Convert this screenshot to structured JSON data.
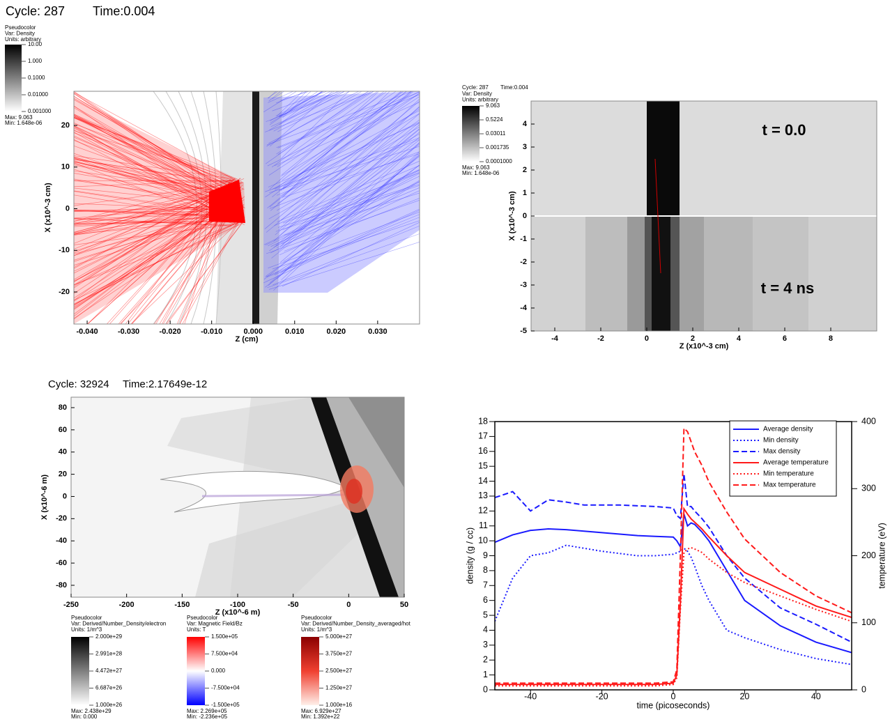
{
  "chart_data": [
    {
      "type": "image",
      "cycle": "Cycle: 287",
      "time": "Time:0.004",
      "xlabel": "Z (cm)",
      "ylabel": "X (x10^-3 cm)",
      "xlim": [
        -0.0432,
        0.0401
      ],
      "ylim": [
        -27.7,
        28.2
      ],
      "xticks": [
        {
          "value": -0.04,
          "label": "-0.040"
        },
        {
          "value": -0.03,
          "label": "-0.030"
        },
        {
          "value": -0.02,
          "label": "-0.020"
        },
        {
          "value": -0.01,
          "label": "-0.010"
        },
        {
          "value": 0,
          "label": "0.000"
        },
        {
          "value": 0.01,
          "label": "0.010"
        },
        {
          "value": 0.02,
          "label": "0.020"
        },
        {
          "value": 0.03,
          "label": "0.030"
        }
      ],
      "yticks": [
        20,
        10,
        0,
        -10,
        -20
      ],
      "legends": [
        {
          "title": "Pseudocolor",
          "var": "Var: Density",
          "units": "Units: arbitrary",
          "labels": [
            "10.00",
            "1.000",
            "0.1000",
            "0.01000",
            "0.001000"
          ],
          "max": "Max:  9.063",
          "min": "Min:  1.648e-06"
        }
      ]
    },
    {
      "type": "image",
      "cycle": "Cycle: 287",
      "time": "Time:0.004",
      "xlabel": "Z (x10^-3 cm)",
      "ylabel": "X (x10^-3 cm)",
      "xlim": [
        -5.03,
        10.0
      ],
      "ylim": [
        -5,
        5
      ],
      "xticks": [
        -4,
        -2,
        0,
        2,
        4,
        6,
        8
      ],
      "yticks": [
        4,
        3,
        2,
        1,
        0,
        -1,
        -2,
        -3,
        -4,
        -5
      ],
      "annotations": [
        "t = 0.0",
        "t = 4 ns"
      ],
      "legends": [
        {
          "var": "Var: Density",
          "units": "Units: arbitrary",
          "labels": [
            "9.063",
            "0.5224",
            "0.03011",
            "0.001735",
            "0.0001000"
          ],
          "max": "Max:  9.063",
          "min": "Min:  1.648e-06"
        }
      ]
    },
    {
      "type": "image",
      "cycle": "Cycle: 32924",
      "time": "Time:2.17649e-12",
      "xlabel": "Z (x10^-6 m)",
      "ylabel": "X (x10^-6 m)",
      "xlim": [
        -250,
        50
      ],
      "ylim": [
        -90.7,
        89.4
      ],
      "xticks": [
        -250,
        -200,
        -150,
        -100,
        -50,
        0,
        50
      ],
      "yticks": [
        80,
        60,
        40,
        20,
        0,
        -20,
        -40,
        -60,
        -80
      ],
      "legends": [
        {
          "title": "Pseudocolor",
          "var": "Var: Derived/Number_Density/electron",
          "units": "Units: 1/m^3",
          "labels": [
            "2.000e+29",
            "2.991e+28",
            "4.472e+27",
            "6.687e+26",
            "1.000e+26"
          ],
          "max": "Max:  2.438e+29",
          "min": "Min:  0.000"
        },
        {
          "title": "Pseudocolor",
          "var": "Var: Magnetic Field/Bz",
          "units": "Units: T",
          "labels": [
            "1.500e+05",
            "7.500e+04",
            "0.000",
            "-7.500e+04",
            "-1.500e+05"
          ],
          "max": "Max:  2.269e+05",
          "min": "Min:  -2.236e+05"
        },
        {
          "title": "Pseudocolor",
          "var": "Var: Derived/Number_Density_averaged/hot",
          "units": "Units: 1/m^3",
          "labels": [
            "5.000e+27",
            "3.750e+27",
            "2.500e+27",
            "1.250e+27",
            "1.000e+16"
          ],
          "max": "Max:  6.929e+27",
          "min": "Min:  1.392e+22"
        }
      ]
    },
    {
      "type": "line",
      "xlabel": "time (picoseconds)",
      "ylabel": "density (g / cc)",
      "y2label": "temperature (eV)",
      "xlim": [
        -50,
        50
      ],
      "ylim": [
        0,
        18
      ],
      "y2lim": [
        0,
        400
      ],
      "xticks": [
        -40,
        -20,
        0,
        20,
        40
      ],
      "yticks": [
        0,
        1,
        2,
        3,
        4,
        5,
        6,
        7,
        8,
        9,
        10,
        11,
        12,
        13,
        14,
        15,
        16,
        17,
        18
      ],
      "y2ticks": [
        0,
        100,
        200,
        300,
        400
      ],
      "legend": "upper right",
      "x": [
        -50,
        -45,
        -40,
        -35,
        -30,
        -25,
        -20,
        -15,
        -10,
        -5,
        0,
        1,
        2,
        3,
        4,
        5,
        6,
        8,
        10,
        15,
        20,
        30,
        40,
        50
      ],
      "series": [
        {
          "name": "Average density",
          "color": "#1a1aff",
          "style": "solid",
          "values": [
            9.9,
            10.4,
            10.7,
            10.8,
            10.75,
            10.65,
            10.55,
            10.45,
            10.35,
            10.3,
            10.25,
            10.0,
            9.6,
            11.8,
            11.0,
            11.2,
            11.1,
            10.6,
            10.0,
            8.0,
            6.0,
            4.3,
            3.2,
            2.5
          ]
        },
        {
          "name": "Min density",
          "color": "#1a1aff",
          "style": "dotted",
          "values": [
            4.6,
            7.5,
            9.0,
            9.2,
            9.7,
            9.5,
            9.3,
            9.15,
            9.0,
            9.0,
            9.1,
            9.2,
            9.3,
            9.5,
            9.3,
            8.9,
            8.3,
            7.0,
            6.0,
            4.0,
            3.5,
            2.7,
            2.1,
            1.7
          ]
        },
        {
          "name": "Max density",
          "color": "#1a1aff",
          "style": "dashed",
          "values": [
            12.9,
            13.3,
            12.0,
            12.75,
            12.6,
            12.4,
            12.4,
            12.4,
            12.35,
            12.3,
            12.2,
            11.7,
            11.5,
            14.5,
            12.3,
            12.3,
            12.0,
            11.5,
            10.9,
            9.0,
            7.5,
            5.5,
            4.4,
            3.2
          ]
        },
        {
          "name": "Average temperature",
          "color": "#ff1a1a",
          "style": "solid",
          "axis": "y2",
          "values": [
            8,
            8,
            8,
            8,
            8,
            8,
            8,
            8,
            8,
            8,
            10,
            22,
            130,
            270,
            262,
            255,
            250,
            240,
            228,
            200,
            175,
            150,
            125,
            108
          ]
        },
        {
          "name": "Min temperature",
          "color": "#ff1a1a",
          "style": "dotted",
          "axis": "y2",
          "values": [
            6,
            6,
            6,
            6,
            6,
            6,
            6,
            6,
            6,
            6,
            8,
            18,
            120,
            205,
            210,
            212,
            210,
            205,
            195,
            175,
            160,
            140,
            120,
            102
          ]
        },
        {
          "name": "Max temperature",
          "color": "#ff1a1a",
          "style": "dashed",
          "axis": "y2",
          "values": [
            10,
            10,
            10,
            10,
            10,
            10,
            10,
            10,
            10,
            10,
            12,
            30,
            200,
            390,
            385,
            370,
            355,
            335,
            310,
            265,
            225,
            175,
            140,
            115
          ]
        }
      ]
    }
  ]
}
